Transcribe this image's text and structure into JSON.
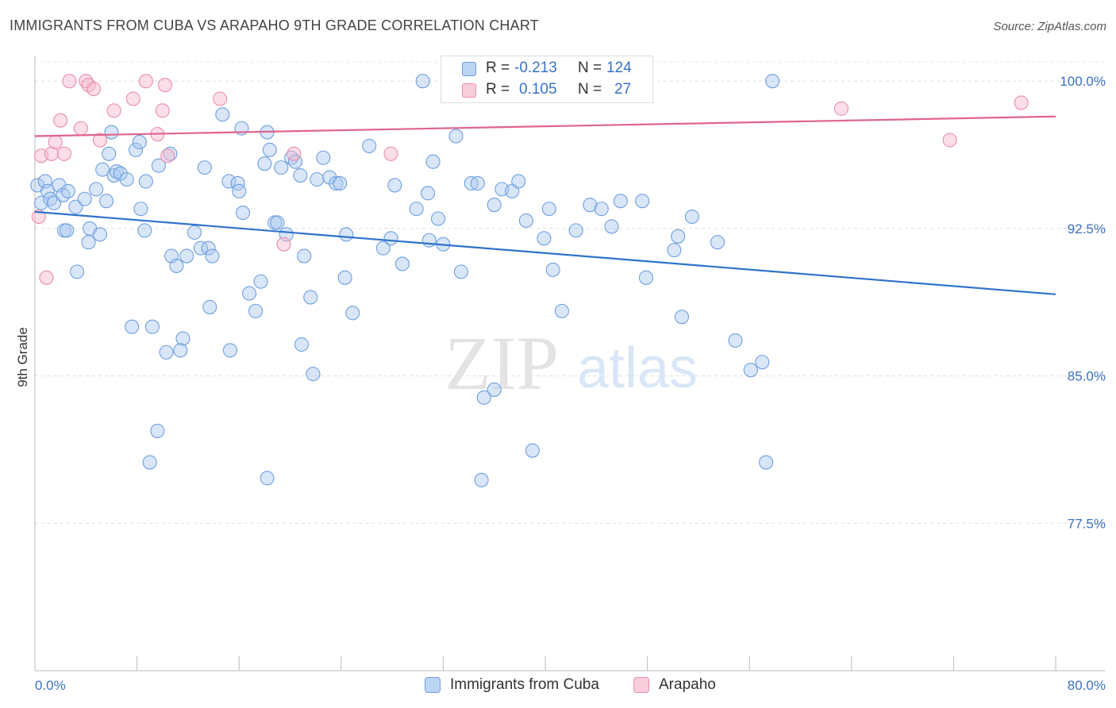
{
  "title": "IMMIGRANTS FROM CUBA VS ARAPAHO 9TH GRADE CORRELATION CHART",
  "source": "Source: ZipAtlas.com",
  "watermark": {
    "zip": "ZIP",
    "atlas": "atlas"
  },
  "legend_top": {
    "rows": [
      {
        "r_label": "R =",
        "r_value": "-0.213",
        "n_label": "N =",
        "n_value": "124"
      },
      {
        "r_label": "R =",
        "r_value": "0.105",
        "n_label": "N =",
        "n_value": "27"
      }
    ]
  },
  "colors": {
    "blue_fill": "#a9c8f0",
    "blue_stroke": "#6f9fe0",
    "blue_line": "#2f72cc",
    "pink_fill": "#f6b6c9",
    "pink_stroke": "#ea8fab",
    "pink_line": "#e0648c",
    "axis_label": "#3a70c4",
    "grid": "#dddddd"
  },
  "chart_data": {
    "type": "scatter",
    "title": "IMMIGRANTS FROM CUBA VS ARAPAHO 9TH GRADE CORRELATION CHART",
    "xlabel": "",
    "ylabel": "9th Grade",
    "xlim": [
      0,
      80
    ],
    "ylim": [
      70.0,
      101.3
    ],
    "x_tick_labels": [
      "0.0%",
      "80.0%"
    ],
    "y_ticks": [
      77.5,
      85.0,
      92.5,
      100.0
    ],
    "y_tick_labels": [
      "77.5%",
      "85.0%",
      "92.5%",
      "100.0%"
    ],
    "grid": true,
    "legend_position": "top-center",
    "series": [
      {
        "name": "Immigrants from Cuba",
        "color": "#a9c8f0",
        "trend": {
          "x": [
            0,
            80
          ],
          "y": [
            93.35,
            89.15
          ]
        },
        "points": [
          [
            0.2,
            94.7
          ],
          [
            0.5,
            93.8
          ],
          [
            0.8,
            94.9
          ],
          [
            1.0,
            94.4
          ],
          [
            1.2,
            94.0
          ],
          [
            1.5,
            93.8
          ],
          [
            1.9,
            94.7
          ],
          [
            2.2,
            94.2
          ],
          [
            2.6,
            94.4
          ],
          [
            2.3,
            92.4
          ],
          [
            3.2,
            93.6
          ],
          [
            3.9,
            94.0
          ],
          [
            4.3,
            92.5
          ],
          [
            4.8,
            94.5
          ],
          [
            5.6,
            93.9
          ],
          [
            5.3,
            95.5
          ],
          [
            6.2,
            95.2
          ],
          [
            6.4,
            95.4
          ],
          [
            6.7,
            95.3
          ],
          [
            7.2,
            95.0
          ],
          [
            6.0,
            97.4
          ],
          [
            7.9,
            96.5
          ],
          [
            8.2,
            96.9
          ],
          [
            8.7,
            94.9
          ],
          [
            9.7,
            95.7
          ],
          [
            10.6,
            96.3
          ],
          [
            8.3,
            93.5
          ],
          [
            8.6,
            92.4
          ],
          [
            2.5,
            92.4
          ],
          [
            4.2,
            91.8
          ],
          [
            5.1,
            92.2
          ],
          [
            3.3,
            90.3
          ],
          [
            10.7,
            91.1
          ],
          [
            11.1,
            90.6
          ],
          [
            11.9,
            91.1
          ],
          [
            12.5,
            92.3
          ],
          [
            13.0,
            91.5
          ],
          [
            13.6,
            91.5
          ],
          [
            13.9,
            91.1
          ],
          [
            13.3,
            95.6
          ],
          [
            14.7,
            98.3
          ],
          [
            15.2,
            94.9
          ],
          [
            15.9,
            94.8
          ],
          [
            16.0,
            94.4
          ],
          [
            16.3,
            93.3
          ],
          [
            16.2,
            97.6
          ],
          [
            16.8,
            89.2
          ],
          [
            17.3,
            88.3
          ],
          [
            17.7,
            89.8
          ],
          [
            18.0,
            95.8
          ],
          [
            18.2,
            97.4
          ],
          [
            18.4,
            96.5
          ],
          [
            18.8,
            92.8
          ],
          [
            19.3,
            95.6
          ],
          [
            19.7,
            92.2
          ],
          [
            20.1,
            96.1
          ],
          [
            20.4,
            95.9
          ],
          [
            20.8,
            95.2
          ],
          [
            21.1,
            91.1
          ],
          [
            21.6,
            89.0
          ],
          [
            22.1,
            95.0
          ],
          [
            22.6,
            96.1
          ],
          [
            23.1,
            95.1
          ],
          [
            23.6,
            94.8
          ],
          [
            23.9,
            94.8
          ],
          [
            24.4,
            92.2
          ],
          [
            24.3,
            90.0
          ],
          [
            24.9,
            88.2
          ],
          [
            13.7,
            88.5
          ],
          [
            9.2,
            87.5
          ],
          [
            11.6,
            86.9
          ],
          [
            10.3,
            86.2
          ],
          [
            11.4,
            86.3
          ],
          [
            15.3,
            86.3
          ],
          [
            20.9,
            86.6
          ],
          [
            21.8,
            85.1
          ],
          [
            7.6,
            87.5
          ],
          [
            9.6,
            82.2
          ],
          [
            9.0,
            80.6
          ],
          [
            18.2,
            79.8
          ],
          [
            26.2,
            96.7
          ],
          [
            27.3,
            91.5
          ],
          [
            27.9,
            92.0
          ],
          [
            28.2,
            94.7
          ],
          [
            28.8,
            90.7
          ],
          [
            29.9,
            93.5
          ],
          [
            30.4,
            100.0
          ],
          [
            30.8,
            94.3
          ],
          [
            31.2,
            95.9
          ],
          [
            31.6,
            93.0
          ],
          [
            30.9,
            91.9
          ],
          [
            32.0,
            91.7
          ],
          [
            33.0,
            97.2
          ],
          [
            33.4,
            90.3
          ],
          [
            34.2,
            94.8
          ],
          [
            34.7,
            94.8
          ],
          [
            36.0,
            93.7
          ],
          [
            36.6,
            94.5
          ],
          [
            37.4,
            94.4
          ],
          [
            37.9,
            94.9
          ],
          [
            38.5,
            92.9
          ],
          [
            39.9,
            92.0
          ],
          [
            40.3,
            93.5
          ],
          [
            40.6,
            90.4
          ],
          [
            41.3,
            88.3
          ],
          [
            42.4,
            92.4
          ],
          [
            43.5,
            93.7
          ],
          [
            44.4,
            93.5
          ],
          [
            45.2,
            92.6
          ],
          [
            45.9,
            93.9
          ],
          [
            47.6,
            93.9
          ],
          [
            47.9,
            90.0
          ],
          [
            50.1,
            91.4
          ],
          [
            50.4,
            92.1
          ],
          [
            50.7,
            88.0
          ],
          [
            51.5,
            93.1
          ],
          [
            53.5,
            91.8
          ],
          [
            54.9,
            86.8
          ],
          [
            56.1,
            85.3
          ],
          [
            57.0,
            85.7
          ],
          [
            57.3,
            80.6
          ],
          [
            57.8,
            100.0
          ],
          [
            36.0,
            84.3
          ],
          [
            35.2,
            83.9
          ],
          [
            35.0,
            79.7
          ],
          [
            39.0,
            81.2
          ],
          [
            19.0,
            92.8
          ],
          [
            5.8,
            96.3
          ]
        ]
      },
      {
        "name": "Arapaho",
        "color": "#f6b6c9",
        "trend": {
          "x": [
            0,
            80
          ],
          "y": [
            97.2,
            98.2
          ]
        },
        "points": [
          [
            0.3,
            93.1
          ],
          [
            0.5,
            96.2
          ],
          [
            0.9,
            90.0
          ],
          [
            1.3,
            96.3
          ],
          [
            1.6,
            96.9
          ],
          [
            2.0,
            98.0
          ],
          [
            2.3,
            96.3
          ],
          [
            2.7,
            100.0
          ],
          [
            3.6,
            97.6
          ],
          [
            4.0,
            100.0
          ],
          [
            4.2,
            99.8
          ],
          [
            4.6,
            99.6
          ],
          [
            5.1,
            97.0
          ],
          [
            6.2,
            98.5
          ],
          [
            7.7,
            99.1
          ],
          [
            8.7,
            100.0
          ],
          [
            9.6,
            97.3
          ],
          [
            10.0,
            98.5
          ],
          [
            10.2,
            99.8
          ],
          [
            10.4,
            96.2
          ],
          [
            14.5,
            99.1
          ],
          [
            19.5,
            91.7
          ],
          [
            20.3,
            96.3
          ],
          [
            27.9,
            96.3
          ],
          [
            63.2,
            98.6
          ],
          [
            71.7,
            97.0
          ],
          [
            77.3,
            98.9
          ]
        ]
      }
    ]
  }
}
